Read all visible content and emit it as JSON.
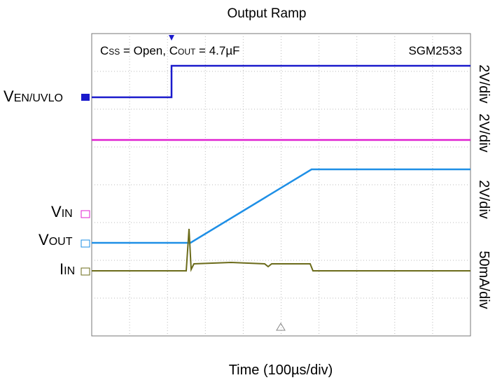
{
  "header": {
    "title": "Output Ramp"
  },
  "annotation": {
    "parts": [
      "C",
      "SS",
      " = Open, C",
      "OUT",
      " = 4.7µF"
    ],
    "device": "SGM2533"
  },
  "channels": [
    {
      "name": {
        "main": "V",
        "sub": "EN/UVLO"
      },
      "scale": "2V/div"
    },
    {
      "name": {
        "main": "V",
        "sub": "IN"
      },
      "scale": "2V/div"
    },
    {
      "name": {
        "main": "V",
        "sub": "OUT"
      },
      "scale": "2V/div"
    },
    {
      "name": {
        "main": "I",
        "sub": "IN"
      },
      "scale": "50mA/div"
    }
  ],
  "footer": {
    "x_label": "Time (100µs/div)"
  }
}
